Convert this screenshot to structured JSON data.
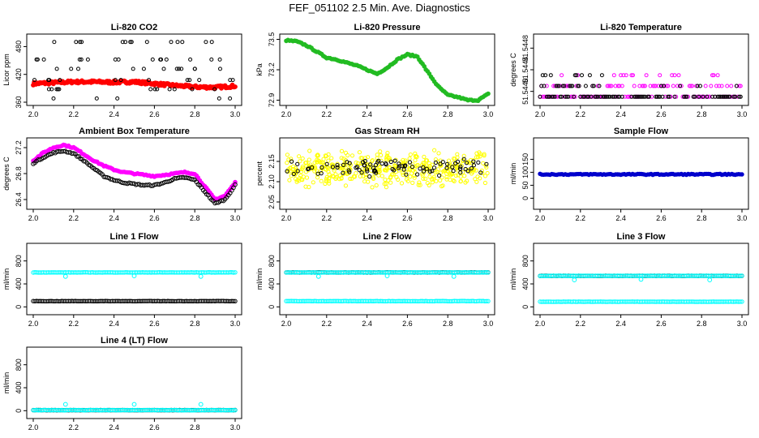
{
  "title": "FEF_051102  2.5 Min. Ave. Diagnostics",
  "colors": {
    "red": "#ff0000",
    "black": "#000000",
    "green": "#22bb22",
    "magenta": "#ff00ff",
    "yellow": "#ffff00",
    "blue": "#0000cc",
    "cyan": "#00ffff"
  },
  "chart_data": [
    {
      "id": "co2",
      "type": "scatter",
      "title": "Li-820 CO2",
      "ylabel": "Licor ppm",
      "xlim": [
        2.0,
        3.0
      ],
      "ylim": [
        360,
        500
      ],
      "xticks": [
        "2.0",
        "2.2",
        "2.4",
        "2.6",
        "2.8",
        "3.0"
      ],
      "yticks": [
        "360",
        "420",
        "480"
      ],
      "series": [
        {
          "name": "co2-filtered",
          "color": "red",
          "marker": "dot",
          "values_at": [
            [
              2.0,
              400
            ],
            [
              2.1,
              402
            ],
            [
              2.2,
              404
            ],
            [
              2.3,
              404
            ],
            [
              2.4,
              403
            ],
            [
              2.5,
              404
            ],
            [
              2.6,
              400
            ],
            [
              2.7,
              396
            ],
            [
              2.8,
              393
            ],
            [
              2.9,
              392
            ],
            [
              3.0,
              395
            ]
          ]
        },
        {
          "name": "co2-raw",
          "color": "black",
          "marker": "circle",
          "levels": [
            368,
            388,
            408,
            432,
            452,
            490
          ]
        }
      ]
    },
    {
      "id": "press",
      "type": "line",
      "title": "Li-820 Pressure",
      "ylabel": "kPa",
      "xlim": [
        2.0,
        3.0
      ],
      "ylim": [
        72.88,
        73.52
      ],
      "xticks": [
        "2.0",
        "2.2",
        "2.4",
        "2.6",
        "2.8",
        "3.0"
      ],
      "yticks": [
        "72.9",
        "73.2",
        "73.5"
      ],
      "series": [
        {
          "name": "pressure",
          "color": "green",
          "x": [
            2.0,
            2.05,
            2.1,
            2.15,
            2.2,
            2.25,
            2.3,
            2.35,
            2.4,
            2.45,
            2.5,
            2.55,
            2.6,
            2.65,
            2.7,
            2.75,
            2.8,
            2.85,
            2.9,
            2.95,
            3.0
          ],
          "y": [
            73.49,
            73.48,
            73.44,
            73.38,
            73.32,
            73.3,
            73.27,
            73.24,
            73.2,
            73.16,
            73.22,
            73.3,
            73.35,
            73.33,
            73.18,
            73.04,
            72.95,
            72.93,
            72.9,
            72.9,
            72.96
          ]
        }
      ]
    },
    {
      "id": "ltemp",
      "type": "scatter",
      "title": "Li-820 Temperature",
      "ylabel": "degrees C",
      "xlim": [
        2.0,
        3.0
      ],
      "ylim": [
        51.5438,
        51.545
      ],
      "xticks": [
        "2.0",
        "2.2",
        "2.4",
        "2.6",
        "2.8",
        "3.0"
      ],
      "yticks": [
        "51.5440",
        "51.5444",
        "51.5448"
      ],
      "series": [
        {
          "name": "temp-magenta",
          "color": "magenta",
          "levels": [
            51.5439,
            51.5441,
            51.5443
          ]
        },
        {
          "name": "temp-black",
          "color": "black",
          "levels": [
            51.5439,
            51.5441,
            51.5443
          ]
        }
      ]
    },
    {
      "id": "ambient",
      "type": "line",
      "title": "Ambient Box Temperature",
      "ylabel": "degrees C",
      "xlim": [
        2.0,
        3.0
      ],
      "ylim": [
        26.3,
        27.3
      ],
      "xticks": [
        "2.0",
        "2.2",
        "2.4",
        "2.6",
        "2.8",
        "3.0"
      ],
      "yticks": [
        "26.4",
        "26.8",
        "27.2"
      ],
      "series": [
        {
          "name": "ambient-magenta",
          "color": "magenta",
          "x": [
            2.0,
            2.05,
            2.1,
            2.15,
            2.2,
            2.25,
            2.3,
            2.35,
            2.4,
            2.45,
            2.5,
            2.55,
            2.6,
            2.65,
            2.7,
            2.75,
            2.8,
            2.85,
            2.9,
            2.95,
            3.0
          ],
          "y": [
            27.0,
            27.12,
            27.2,
            27.24,
            27.2,
            27.1,
            27.0,
            26.92,
            26.86,
            26.82,
            26.8,
            26.78,
            26.76,
            26.78,
            26.8,
            26.82,
            26.8,
            26.6,
            26.4,
            26.46,
            26.66
          ]
        },
        {
          "name": "ambient-black",
          "color": "black",
          "x": [
            2.0,
            2.05,
            2.1,
            2.15,
            2.2,
            2.25,
            2.3,
            2.35,
            2.4,
            2.45,
            2.5,
            2.55,
            2.6,
            2.65,
            2.7,
            2.75,
            2.8,
            2.85,
            2.9,
            2.95,
            3.0
          ],
          "y": [
            26.96,
            27.05,
            27.12,
            27.15,
            27.11,
            27.0,
            26.88,
            26.76,
            26.7,
            26.66,
            26.64,
            26.62,
            26.62,
            26.66,
            26.72,
            26.74,
            26.7,
            26.52,
            26.34,
            26.4,
            26.62
          ]
        }
      ]
    },
    {
      "id": "rh",
      "type": "scatter",
      "title": "Gas Stream RH",
      "ylabel": "percent",
      "xlim": [
        2.0,
        3.0
      ],
      "ylim": [
        2.04,
        2.2
      ],
      "xticks": [
        "2.0",
        "2.2",
        "2.4",
        "2.6",
        "2.8",
        "3.0"
      ],
      "yticks": [
        "2.05",
        "2.10",
        "2.15"
      ],
      "series": [
        {
          "name": "rh-yellow",
          "color": "yellow",
          "center": 2.13,
          "spread": 0.03
        },
        {
          "name": "rh-black",
          "color": "black",
          "center": 2.135,
          "spread": 0.015
        }
      ]
    },
    {
      "id": "sample",
      "type": "scatter",
      "title": "Sample Flow",
      "ylabel": "ml/min",
      "xlim": [
        2.0,
        3.0
      ],
      "ylim": [
        -30,
        220
      ],
      "xticks": [
        "2.0",
        "2.2",
        "2.4",
        "2.6",
        "2.8",
        "3.0"
      ],
      "yticks": [
        "0",
        "50",
        "100",
        "150"
      ],
      "series": [
        {
          "name": "sample-flow",
          "color": "blue",
          "value": 92
        }
      ]
    },
    {
      "id": "line1",
      "type": "scatter",
      "title": "Line 1 Flow",
      "ylabel": "ml/min",
      "xlim": [
        2.0,
        3.0
      ],
      "ylim": [
        -80,
        1050
      ],
      "xticks": [
        "2.0",
        "2.2",
        "2.4",
        "2.6",
        "2.8",
        "3.0"
      ],
      "yticks": [
        "0",
        "400",
        "800"
      ],
      "series": [
        {
          "name": "line1-cyan",
          "color": "cyan",
          "value": 600,
          "dips": [
            [
              2.16,
              530
            ],
            [
              2.5,
              540
            ],
            [
              2.83,
              530
            ]
          ]
        },
        {
          "name": "line1-black",
          "color": "black",
          "value": 100
        }
      ]
    },
    {
      "id": "line2",
      "type": "scatter",
      "title": "Line 2 Flow",
      "ylabel": "ml/min",
      "xlim": [
        2.0,
        3.0
      ],
      "ylim": [
        -80,
        1050
      ],
      "xticks": [
        "2.0",
        "2.2",
        "2.4",
        "2.6",
        "2.8",
        "3.0"
      ],
      "yticks": [
        "0",
        "400",
        "800"
      ],
      "series": [
        {
          "name": "line2-black",
          "color": "black",
          "value": 600
        },
        {
          "name": "line2-cyan-high",
          "color": "cyan",
          "value": 600,
          "dips": [
            [
              2.16,
              530
            ],
            [
              2.5,
              540
            ],
            [
              2.83,
              530
            ]
          ]
        },
        {
          "name": "line2-cyan-low",
          "color": "cyan",
          "value": 100
        }
      ]
    },
    {
      "id": "line3",
      "type": "scatter",
      "title": "Line 3 Flow",
      "ylabel": "ml/min",
      "xlim": [
        2.0,
        3.0
      ],
      "ylim": [
        -80,
        1050
      ],
      "xticks": [
        "2.0",
        "2.2",
        "2.4",
        "2.6",
        "2.8",
        "3.0"
      ],
      "yticks": [
        "0",
        "400",
        "800"
      ],
      "series": [
        {
          "name": "line3-black",
          "color": "black",
          "value": 540
        },
        {
          "name": "line3-cyan-high",
          "color": "cyan",
          "value": 540,
          "dips": [
            [
              2.17,
              470
            ],
            [
              2.5,
              480
            ],
            [
              2.84,
              470
            ]
          ]
        },
        {
          "name": "line3-cyan-low",
          "color": "cyan",
          "value": 90
        }
      ]
    },
    {
      "id": "line4",
      "type": "scatter",
      "title": "Line 4 (LT) Flow",
      "ylabel": "ml/min",
      "xlim": [
        2.0,
        3.0
      ],
      "ylim": [
        -80,
        1050
      ],
      "xticks": [
        "2.0",
        "2.2",
        "2.4",
        "2.6",
        "2.8",
        "3.0"
      ],
      "yticks": [
        "0",
        "400",
        "800"
      ],
      "series": [
        {
          "name": "line4-black",
          "color": "black",
          "value": 10
        },
        {
          "name": "line4-cyan",
          "color": "cyan",
          "value": 10,
          "spikes": [
            [
              2.16,
              110
            ],
            [
              2.5,
              110
            ],
            [
              2.83,
              110
            ]
          ]
        }
      ]
    }
  ]
}
